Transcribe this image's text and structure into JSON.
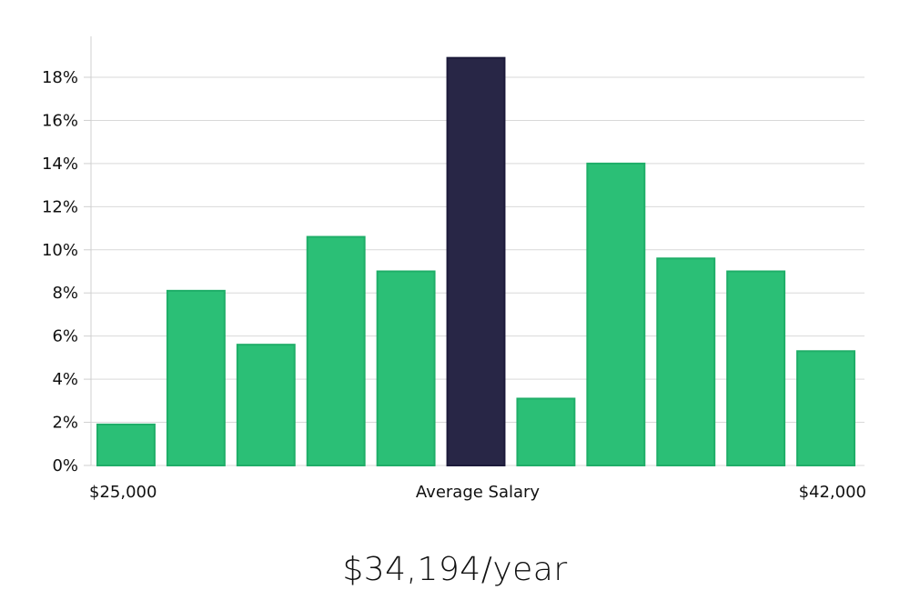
{
  "chart_data": {
    "type": "bar",
    "values": [
      1.9,
      8.1,
      5.6,
      10.6,
      9.0,
      18.9,
      3.1,
      14.0,
      9.6,
      9.0,
      5.3
    ],
    "highlight_index": 5,
    "ylim": [
      0,
      20
    ],
    "yticks": [
      0,
      2,
      4,
      6,
      8,
      10,
      12,
      14,
      16,
      18
    ],
    "ytick_format": "%",
    "grid": true,
    "x_min_label": "$25,000",
    "x_center_label": "Average Salary",
    "x_max_label": "$42,000",
    "colors": {
      "bar": "#2bbf76",
      "bar_edge": "#1fae68",
      "highlight": "#282646",
      "highlight_edge": "#1c1a3a"
    }
  },
  "salary_text": "$34,194/year"
}
